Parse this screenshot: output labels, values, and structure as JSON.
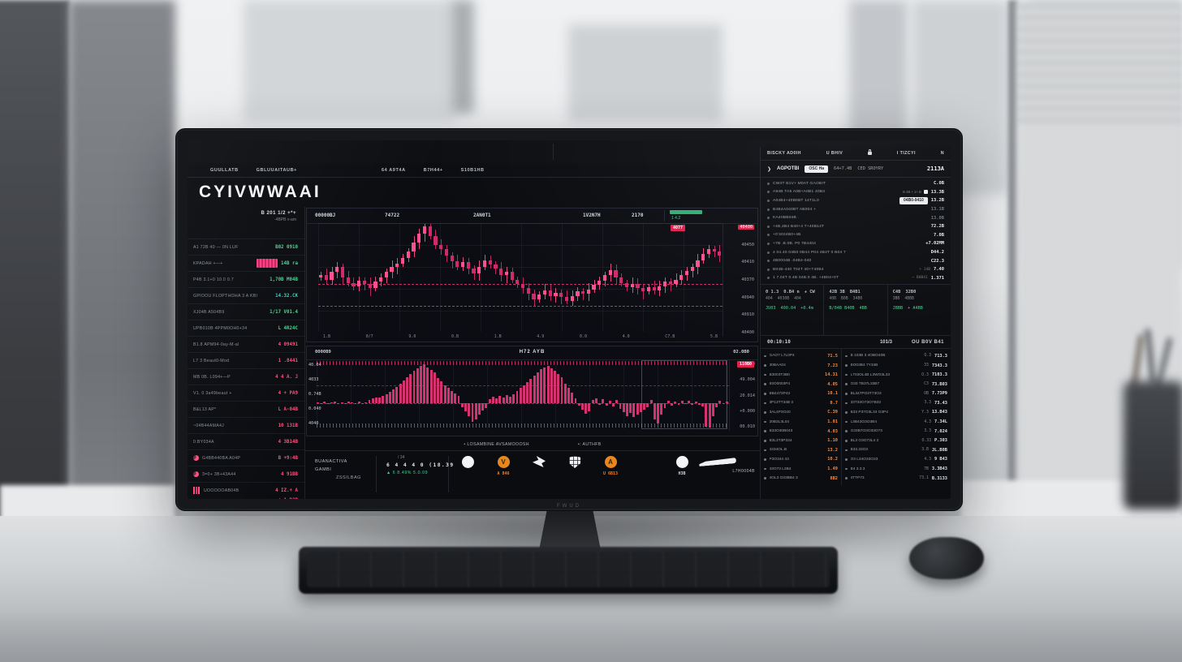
{
  "scene": {
    "monitor_brand": "FWUD"
  },
  "nav": {
    "left": [
      "GUULLATB",
      "GBLUUAITAUB+"
    ],
    "mid": [
      "64 A9T4A",
      "B7H44+",
      "S10B1HB"
    ],
    "right": [
      "E30JB",
      "1B0TL",
      "V7B"
    ]
  },
  "header": {
    "logo": "CYIVWWAAI",
    "price_label": "04 B0V4",
    "price_value": "841 € 212B"
  },
  "watchlist": {
    "summary_line1": "B 201 1/2 +*+",
    "summary_line2": "-4BPB  v-am",
    "rows": [
      {
        "label": "A1 72B 40 — 0N LUF",
        "value": "B02 0910",
        "c": "green"
      },
      {
        "label": "KPADAH +—+",
        "value": "14B ra",
        "c": "green",
        "bar": true
      },
      {
        "label": "P4B 3.1+0 10.0 0.7",
        "value": "1,70B M04B",
        "c": "green"
      },
      {
        "label": "GPIOOU FLOPTHOHA 3 A KBI",
        "value": "14.32.CK",
        "c": "teal"
      },
      {
        "label": "XJ04B A504B9",
        "value": "1/17 V01.4",
        "c": "green"
      },
      {
        "label": "UPB010B 4PPM0OH0+34",
        "value": "L 4R24C",
        "c": "green"
      },
      {
        "label": "B1.8 APM94-0ay-M-al",
        "value": "4 09491",
        "c": "red"
      },
      {
        "label": "L7 3 Beaut0-Mod",
        "value": "1 .8441",
        "c": "red"
      },
      {
        "label": "MB 0B. L094+—P",
        "value": "4 4 A. J",
        "c": "red"
      },
      {
        "label": "V1. 0 3a49beaut +",
        "value": "4 + PA9",
        "c": "red"
      },
      {
        "label": "B&L13 AP*",
        "value": "L A-04B",
        "c": "red"
      },
      {
        "label": "~04B44AMA4J",
        "value": "10 131B",
        "c": "red"
      },
      {
        "label": "0.BY034A",
        "value": "4 3B14B",
        "c": "red"
      },
      {
        "label": "G4BB440BA A04P",
        "value": "B +9:4B",
        "c": "red",
        "icon": "pie"
      },
      {
        "label": "3=0+ 3B+43A44",
        "value": "4 91BB",
        "c": "red",
        "icon": "pie"
      },
      {
        "label": "UOOOOOAB04B",
        "value": "4 IZ.+ A",
        "c": "red",
        "icon": "bars",
        "extra": "+ 1.B2B"
      }
    ]
  },
  "main_chart": {
    "header_values": [
      "00000BJ",
      "74722",
      "2AN0T1",
      "1V2N7H",
      "2170"
    ],
    "green_badge_text": "1 4.2",
    "price_badge": "4077",
    "red_axis_label": "40400",
    "axis_right": [
      "40450",
      "40410",
      "40370",
      "40940",
      "40910",
      "40400"
    ],
    "axis_bottom": [
      "1.B",
      "0/7",
      "9.0",
      "0.B",
      "1.B",
      "4.9",
      "0.0",
      "4.0",
      "C7.B",
      "5.B"
    ],
    "candles": [
      52,
      48,
      55,
      60,
      50,
      45,
      42,
      47,
      44,
      40,
      46,
      50,
      55,
      60,
      63,
      68,
      74,
      82,
      90,
      97,
      88,
      80,
      76,
      70,
      65,
      60,
      64,
      58,
      54,
      60,
      66,
      62,
      58,
      52,
      55,
      48,
      44,
      40,
      35,
      30,
      34,
      38,
      33,
      36,
      32,
      28,
      33,
      37,
      35,
      39,
      43,
      47,
      52,
      57,
      50,
      45,
      41,
      44,
      40,
      37,
      41,
      38,
      42,
      46,
      44,
      48,
      52,
      56,
      60,
      66,
      72,
      76,
      74,
      70
    ]
  },
  "volume_chart": {
    "header_left": "0000B9",
    "title": "H72 AYB",
    "header_right": "02.0B0",
    "red_badge": "110B0",
    "axis_left": [
      "40.04",
      "4033",
      "0.74B",
      "0.040",
      "4040"
    ],
    "axis_right": [
      "24.070",
      "49.004",
      "20.014",
      "+0.000",
      "00.010"
    ],
    "bars": [
      2,
      -3,
      3,
      -2,
      2,
      3,
      -2,
      2,
      -3,
      3,
      2,
      -2,
      3,
      -3,
      2,
      8,
      12,
      15,
      14,
      18,
      22,
      28,
      35,
      42,
      50,
      58,
      66,
      74,
      82,
      88,
      95,
      100,
      92,
      85,
      78,
      65,
      55,
      45,
      38,
      30,
      24,
      18,
      -12,
      -25,
      -40,
      -55,
      -48,
      -35,
      -22,
      -15,
      10,
      16,
      12,
      18,
      14,
      20,
      16,
      22,
      30,
      38,
      46,
      54,
      62,
      70,
      78,
      86,
      92,
      96,
      90,
      82,
      74,
      66,
      50,
      38,
      26,
      12,
      -8,
      -20,
      -32,
      -24,
      8,
      12,
      -6,
      10,
      -8,
      6,
      -10,
      8,
      -18,
      -28,
      -38,
      -30,
      -42,
      -34,
      -26,
      -20,
      -12,
      8,
      -48,
      -60,
      -35,
      -15,
      6,
      -8,
      4,
      -6,
      5,
      -4,
      6,
      -5,
      4,
      -6,
      -10,
      -70,
      -85,
      -40,
      -12,
      6,
      -4,
      3
    ]
  },
  "captions": {
    "left": "• LOSAMBINE AVSAMOOOSH",
    "right": "•: AUTHFB"
  },
  "footer": {
    "block1": [
      "BUANACTIVA",
      "GAMBI",
      "ZSSILBAG"
    ],
    "block2_top": "/ 34",
    "block2_mid": "6 4 4 4 0 (18.39",
    "block2_bot": "▲ 6 8.49% 5.0.09",
    "right_text": "L7H0004B",
    "icons": [
      {
        "name": "wallet-icon",
        "style": "white",
        "glyph": "",
        "sublabel": ""
      },
      {
        "name": "coin-v-icon",
        "style": "orange",
        "glyph": "V",
        "sublabel": "A 846",
        "sub_style": "orange"
      },
      {
        "name": "bird-icon",
        "style": "birdic",
        "glyph": "",
        "sublabel": ""
      },
      {
        "name": "shield-icon",
        "style": "shield",
        "glyph": "",
        "sublabel": ""
      },
      {
        "name": "coin-a-icon",
        "style": "orange",
        "glyph": "A",
        "sublabel": "U 6B13",
        "sub_style": "orange"
      },
      {
        "name": "grid-icon",
        "style": "gridic",
        "glyph": "",
        "sublabel": ""
      },
      {
        "name": "globe-icon",
        "style": "white",
        "glyph": "",
        "sublabel": "H3B",
        "sub_style": "white"
      },
      {
        "name": "swoosh-icon",
        "style": "swoosh",
        "glyph": "",
        "sublabel": ""
      }
    ]
  },
  "right_panel": {
    "header_row1": [
      "BISCKY AD0IH",
      "U BHIV",
      "I TIZCYI",
      "N"
    ],
    "header_row2": {
      "chevron": "❯",
      "tab": "AGPOTBI",
      "button": "OSC Ha",
      "v1": "64+7.4B",
      "v2": "CED SROYRY",
      "v3": "2113A"
    },
    "row_controls": "B  4B  +  1+  B",
    "row_button": "04B0-0410",
    "rows": [
      {
        "label": "CW4T B1V+ M0AT GAOBIT",
        "value": "C.0B"
      },
      {
        "label": "A94B TA5 A0B+A0B1 40B4",
        "value": "13.3B",
        "controls": true
      },
      {
        "label": "A04B4+40B0BT 14T1L0",
        "value": "13.2B",
        "button": true
      },
      {
        "label": "B4B4A040BT AB004 +",
        "value": "13.1B",
        "dim": true
      },
      {
        "label": "KA40BB04B .",
        "value": "13.0B",
        "dim": true
      },
      {
        "label": "+4B,4B4 B40+4 T+40B14T",
        "value": "72.2B"
      },
      {
        "label": "+0'4024B0+4B",
        "value": "7.0B"
      },
      {
        "label": "+7B .B.0B. P0 7B4404",
        "value": "+7.02MM"
      },
      {
        "label": "4 04.40 04B0 0B44 P04 4B4T 0 B04 7",
        "value": "D44.2"
      },
      {
        "label": "4B0004B .04B4-040",
        "value": "C22.3"
      },
      {
        "label": "B04B-440 T04T 40+T40B4",
        "value": "7.40",
        "mid": "+ 14B"
      },
      {
        "label": "1 7.04T 0.4B 04B.0 4B. +4B04+0T",
        "value": "1.371",
        "mid": "~ B0B41"
      }
    ],
    "stats_cards": [
      {
        "top": [
          "0 1.3",
          "0.B4 n",
          "+ CW"
        ],
        "mid": [
          "404",
          "4030B",
          "404"
        ],
        "green": [
          "JU03",
          "400.04",
          "+0.4m"
        ]
      },
      {
        "top": [
          "42B 3B",
          "B4B1"
        ],
        "mid": [
          "40B",
          "B0B",
          "34B0"
        ],
        "green": [
          "B/04B B40B",
          "4BB"
        ]
      },
      {
        "top": [
          "C4B",
          "32B0"
        ],
        "mid": [
          "3BB",
          "4BBB"
        ],
        "green": [
          "JBBB",
          "+ A4BB"
        ]
      }
    ],
    "subheader": {
      "left": "00:10:10",
      "center": "101/3",
      "right": "OU B0V B41"
    },
    "table_left": [
      {
        "label": "GAO7 L7L0P4",
        "value": "71.5"
      },
      {
        "label": "30BAA04",
        "value": "7.23"
      },
      {
        "label": "B3003T3B0",
        "value": "14.31"
      },
      {
        "label": "93O0003P4",
        "value": "4.05"
      },
      {
        "label": "BB4473P43",
        "value": "10.1"
      },
      {
        "label": "3P13TT34B 3",
        "value": "0.7"
      },
      {
        "label": "3AL4P3O40",
        "value": "C.39"
      },
      {
        "label": "20B3L3L04",
        "value": "1.01"
      },
      {
        "label": "B33O30B043",
        "value": "4.03"
      },
      {
        "label": "B3L3T3P334",
        "value": "1.10"
      },
      {
        "label": "4334OL.B",
        "value": "13.2"
      },
      {
        "label": "P3O344 43",
        "value": "10.2"
      },
      {
        "label": "43O73 L3B4",
        "value": "1.49"
      },
      {
        "label": "4OL3 O33BB4 3",
        "value": "8B2"
      }
    ],
    "table_right": [
      {
        "label": "B 103B 3 4OBO40B",
        "v1": "O.3",
        "v2": "713.3"
      },
      {
        "label": "BO03B4 7Y34B",
        "v1": "33",
        "v2": "7343.3"
      },
      {
        "label": "L703OL4B L3WO3L33",
        "v1": "O.3",
        "v2": "7103.3"
      },
      {
        "label": "O33 TB37L33B7",
        "v1": "C3",
        "v2": "73.B03"
      },
      {
        "label": "BL347PO3T73O3",
        "v1": "OB",
        "v2": "7.73P9"
      },
      {
        "label": "33T33O73O7B33",
        "v1": "3.3",
        "v2": "73.43"
      },
      {
        "label": "B33 P37O3L33 O3P4",
        "v1": "Y.3",
        "v2": "13.B43"
      },
      {
        "label": "L3B43O3O3B4",
        "v1": "4.3",
        "v2": "7.34L"
      },
      {
        "label": "G33B7O3O33O73",
        "v1": "3.3",
        "v2": "7.024"
      },
      {
        "label": "BL3 O3O73L4 3",
        "v1": "O.33",
        "v2": "P.303"
      },
      {
        "label": "B33.33O3",
        "v1": "3.B",
        "v2": "JL.B0B"
      },
      {
        "label": "O3 L34O33O33",
        "v1": "4.3",
        "v2": "9 B43"
      },
      {
        "label": "B4 3.3.3",
        "v1": "7B",
        "v2": "3.3B43"
      },
      {
        "label": "4TTP73",
        "v1": "73.1",
        "v2": "B.3133"
      }
    ]
  }
}
